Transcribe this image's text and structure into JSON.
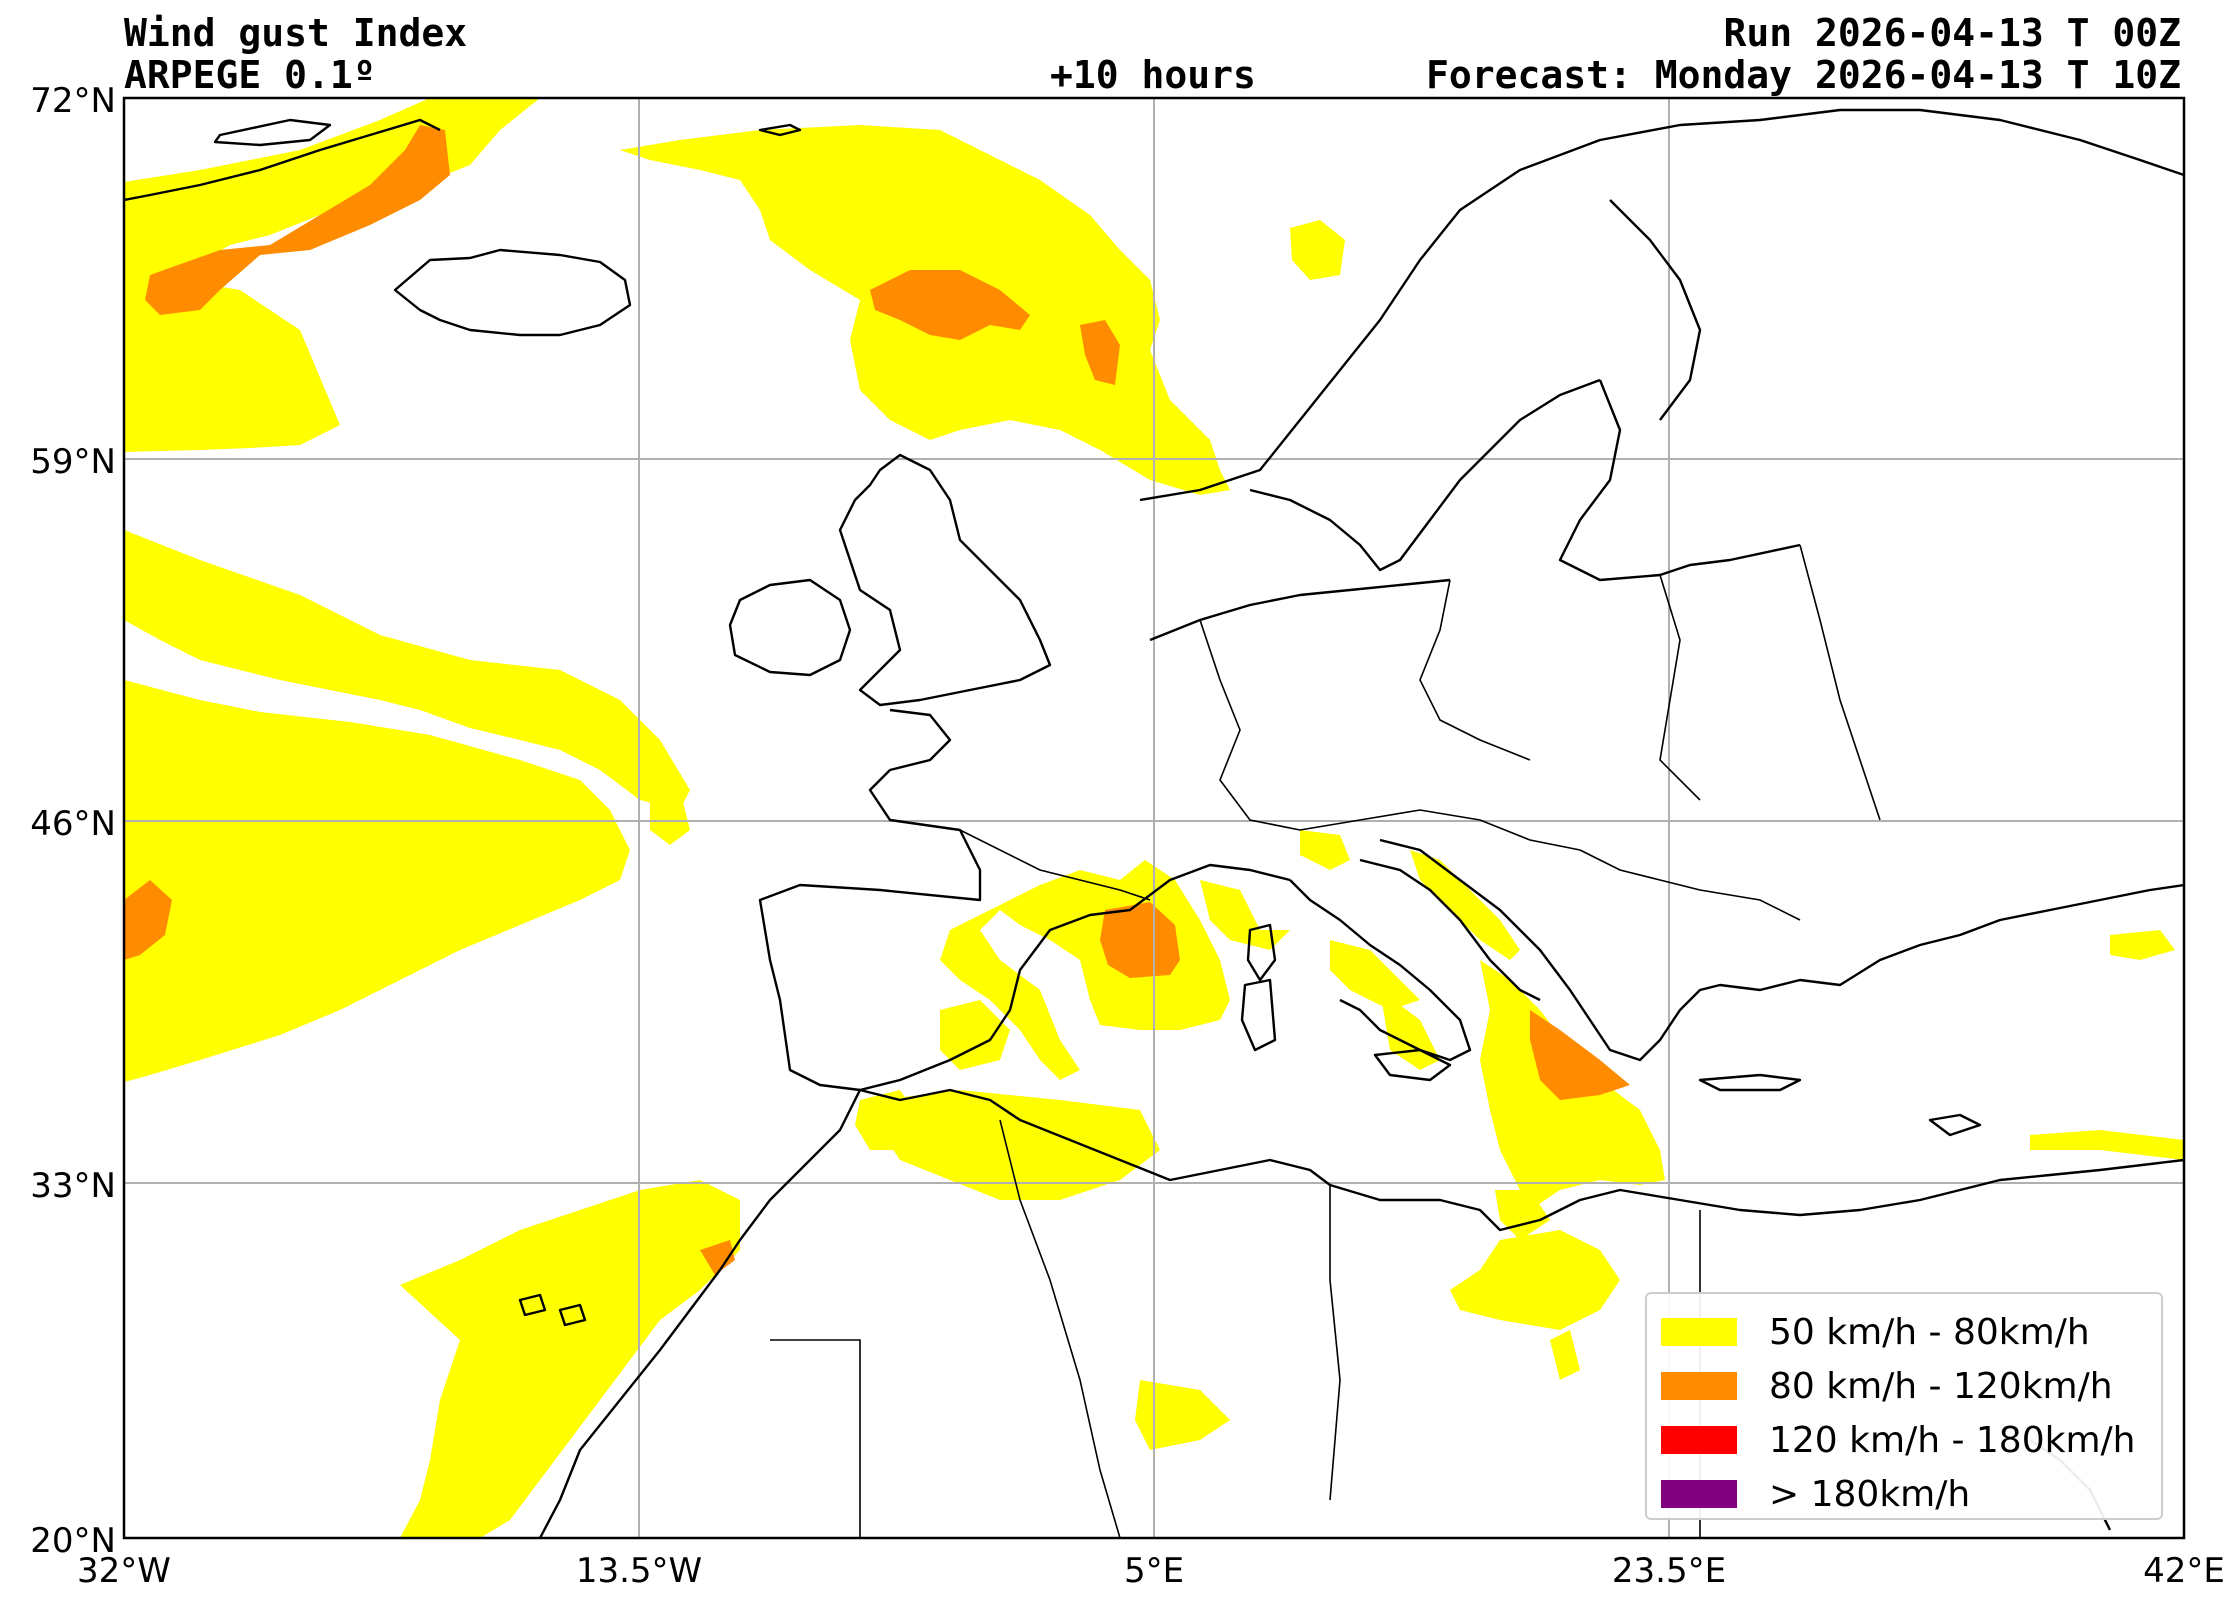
{
  "header": {
    "title": "Wind gust Index",
    "model": "ARPEGE 0.1º",
    "run": "Run 2026-04-13 T 00Z",
    "lead": "+10 hours",
    "forecast": "Forecast: Monday 2026-04-13 T 10Z"
  },
  "axes": {
    "lat_labels": [
      "72°N",
      "59°N",
      "46°N",
      "33°N",
      "20°N"
    ],
    "lon_labels": [
      "32°W",
      "13.5°W",
      "5°E",
      "23.5°E",
      "42°E"
    ],
    "lat_range": [
      20,
      72
    ],
    "lon_range": [
      -32,
      42
    ],
    "grid": true
  },
  "legend": {
    "placement": "bottom-right",
    "items": [
      {
        "label": "50 km/h - 80km/h",
        "color": "#ffff00"
      },
      {
        "label": "80 km/h - 120km/h",
        "color": "#ff8c00"
      },
      {
        "label": "120 km/h - 180km/h",
        "color": "#ff0000"
      },
      {
        "label": "> 180km/h",
        "color": "#800080"
      }
    ]
  },
  "colors": {
    "band_50_80": "#ffff00",
    "band_80_120": "#ff8c00",
    "band_120_180": "#ff0000",
    "band_180_plus": "#800080",
    "coastline": "#000000",
    "gridline": "#b0b0b0"
  }
}
